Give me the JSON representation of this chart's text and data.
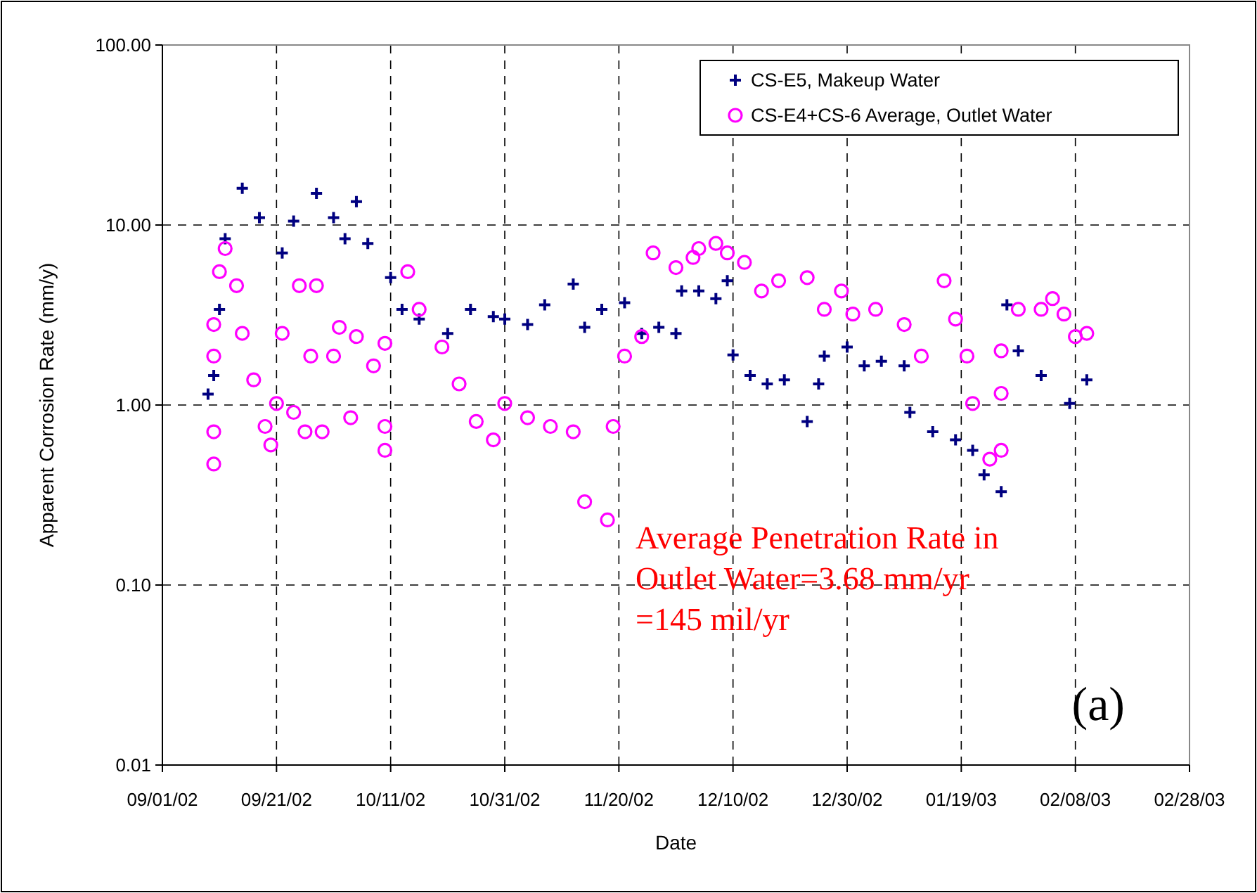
{
  "chart_data": {
    "type": "scatter",
    "xlabel": "Date",
    "ylabel": "Apparent Corrosion Rate (mm/y)",
    "log": "y",
    "grid": true,
    "legend": "top right",
    "xlim": [
      "2002-09-01",
      "2003-02-28"
    ],
    "xticks": [
      {
        "value": "2002-09-01",
        "label": "09/01/02"
      },
      {
        "value": "2002-09-21",
        "label": "09/21/02"
      },
      {
        "value": "2002-10-11",
        "label": "10/11/02"
      },
      {
        "value": "2002-10-31",
        "label": "10/31/02"
      },
      {
        "value": "2002-11-20",
        "label": "11/20/02"
      },
      {
        "value": "2002-12-10",
        "label": "12/10/02"
      },
      {
        "value": "2002-12-30",
        "label": "12/30/02"
      },
      {
        "value": "2003-01-19",
        "label": "01/19/03"
      },
      {
        "value": "2003-02-08",
        "label": "02/08/03"
      },
      {
        "value": "2003-02-28",
        "label": "02/28/03"
      }
    ],
    "ylim": [
      0.01,
      100
    ],
    "yticks": [
      {
        "value": 0.01,
        "label": "0.01"
      },
      {
        "value": 0.1,
        "label": "0.10"
      },
      {
        "value": 1,
        "label": "1.00"
      },
      {
        "value": 10,
        "label": "10.00"
      },
      {
        "value": 100,
        "label": "100.00"
      }
    ],
    "series": [
      {
        "name": "CS-E5, Makeup Water",
        "color": "#000080",
        "marker": "cross",
        "x": [
          "2002-09-09",
          "2002-09-10",
          "2002-09-11",
          "2002-09-12",
          "2002-09-15",
          "2002-09-18",
          "2002-09-22",
          "2002-09-24",
          "2002-09-28",
          "2002-10-01",
          "2002-10-03",
          "2002-10-05",
          "2002-10-07",
          "2002-10-11",
          "2002-10-13",
          "2002-10-16",
          "2002-10-21",
          "2002-10-25",
          "2002-10-29",
          "2002-10-31",
          "2002-11-04",
          "2002-11-07",
          "2002-11-12",
          "2002-11-14",
          "2002-11-17",
          "2002-11-21",
          "2002-11-24",
          "2002-11-27",
          "2002-11-30",
          "2002-12-01",
          "2002-12-04",
          "2002-12-07",
          "2002-12-09",
          "2002-12-10",
          "2002-12-13",
          "2002-12-16",
          "2002-12-19",
          "2002-12-23",
          "2002-12-25",
          "2002-12-26",
          "2002-12-30",
          "2003-01-02",
          "2003-01-05",
          "2003-01-09",
          "2003-01-10",
          "2003-01-14",
          "2003-01-18",
          "2003-01-21",
          "2003-01-23",
          "2003-01-26",
          "2003-01-27",
          "2003-01-29",
          "2003-02-02",
          "2003-02-07",
          "2003-02-10"
        ],
        "values": [
          1.15,
          1.46,
          3.4,
          8.4,
          16,
          11,
          7.0,
          10.5,
          15,
          11,
          8.4,
          13.5,
          7.9,
          5.1,
          3.4,
          3.0,
          2.5,
          3.4,
          3.1,
          3.0,
          2.8,
          3.6,
          4.7,
          2.7,
          3.4,
          3.7,
          2.5,
          2.7,
          2.5,
          4.3,
          4.3,
          3.9,
          4.9,
          1.9,
          1.46,
          1.31,
          1.38,
          0.81,
          1.31,
          1.87,
          2.1,
          1.65,
          1.75,
          1.65,
          0.91,
          0.71,
          0.64,
          0.56,
          0.41,
          0.33,
          3.6,
          2.0,
          1.46,
          1.02,
          1.38
        ]
      },
      {
        "name": "CS-E4+CS-6 Average, Outlet Water",
        "color": "#ff00ff",
        "marker": "circle",
        "x": [
          "2002-09-10",
          "2002-09-10",
          "2002-09-10",
          "2002-09-10",
          "2002-09-11",
          "2002-09-12",
          "2002-09-14",
          "2002-09-15",
          "2002-09-17",
          "2002-09-19",
          "2002-09-20",
          "2002-09-21",
          "2002-09-22",
          "2002-09-24",
          "2002-09-25",
          "2002-09-26",
          "2002-09-27",
          "2002-09-28",
          "2002-09-29",
          "2002-10-01",
          "2002-10-02",
          "2002-10-04",
          "2002-10-05",
          "2002-10-08",
          "2002-10-10",
          "2002-10-10",
          "2002-10-10",
          "2002-10-14",
          "2002-10-16",
          "2002-10-20",
          "2002-10-23",
          "2002-10-26",
          "2002-10-29",
          "2002-10-31",
          "2002-11-04",
          "2002-11-08",
          "2002-11-12",
          "2002-11-14",
          "2002-11-18",
          "2002-11-19",
          "2002-11-21",
          "2002-11-24",
          "2002-11-26",
          "2002-11-30",
          "2002-12-03",
          "2002-12-04",
          "2002-12-07",
          "2002-12-09",
          "2002-12-12",
          "2002-12-15",
          "2002-12-18",
          "2002-12-23",
          "2002-12-26",
          "2002-12-29",
          "2002-12-31",
          "2003-01-04",
          "2003-01-09",
          "2003-01-12",
          "2003-01-16",
          "2003-01-18",
          "2003-01-20",
          "2003-01-21",
          "2003-01-24",
          "2003-01-26",
          "2003-01-26",
          "2003-01-26",
          "2003-01-29",
          "2003-02-02",
          "2003-02-04",
          "2003-02-06",
          "2003-02-08",
          "2003-02-10"
        ],
        "values": [
          0.47,
          0.71,
          1.87,
          2.8,
          5.5,
          7.4,
          4.6,
          2.5,
          1.38,
          0.76,
          0.6,
          1.02,
          2.5,
          0.91,
          4.6,
          0.71,
          1.87,
          4.6,
          0.71,
          1.87,
          2.7,
          0.85,
          2.4,
          1.65,
          2.2,
          0.76,
          0.56,
          5.5,
          3.4,
          2.1,
          1.31,
          0.81,
          0.64,
          1.02,
          0.85,
          0.76,
          0.71,
          0.29,
          0.23,
          0.76,
          1.87,
          2.4,
          7.0,
          5.8,
          6.6,
          7.4,
          7.9,
          7.0,
          6.2,
          4.3,
          4.9,
          5.1,
          3.4,
          4.3,
          3.2,
          3.4,
          2.8,
          1.87,
          4.9,
          3.0,
          1.87,
          1.02,
          0.5,
          1.16,
          0.56,
          2.0,
          3.4,
          3.4,
          3.9,
          3.2,
          2.4,
          2.5
        ]
      }
    ],
    "annotations": [
      "Average Penetration Rate in\nOutlet Water=3.68 mm/yr\n=145 mil/yr",
      "(a)"
    ]
  }
}
